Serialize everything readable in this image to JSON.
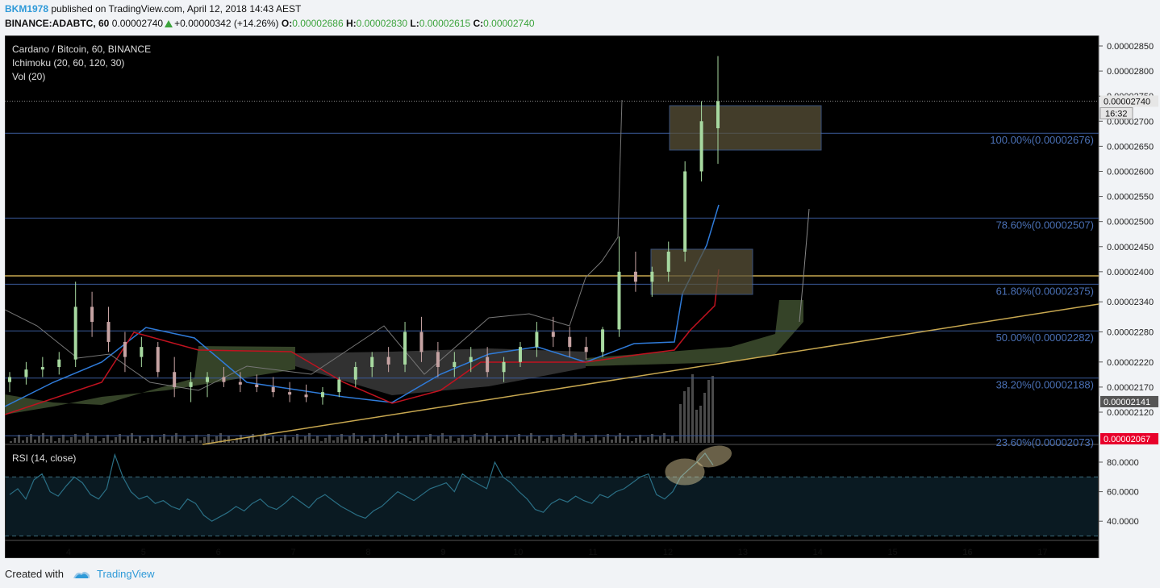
{
  "header": {
    "user": "BKM1978",
    "published": "published on TradingView.com, April 12, 2018 14:43 AEST",
    "symbol": "BINANCE:ADABTC, 60",
    "last": "0.00002740",
    "change": "+0.00000342 (+14.26%)",
    "o_label": "O:",
    "o": "0.00002686",
    "h_label": "H:",
    "h": "0.00002830",
    "l_label": "L:",
    "l": "0.00002615",
    "c_label": "C:",
    "c": "0.00002740"
  },
  "footer": {
    "created": "Created with",
    "brand": "TradingView"
  },
  "colors": {
    "background": "#000000",
    "fib": "#3a5a9a",
    "fibText": "#4a70b5",
    "trend": "#c8a850",
    "tenkan": "#2f7bd9",
    "kijun": "#c0121f",
    "cloudBull": "#3b4a2c",
    "cloudBear": "#3a3a3a",
    "candleUp": "#a7d9a0",
    "candleDown": "#c6a3a3",
    "box": "#5a5238",
    "rsiLine": "#2a6f85",
    "highlight": "#e8d6a0"
  },
  "chart_data": {
    "type": "candlestick",
    "title": "Cardano / Bitcoin, 60, BINANCE",
    "indicators": [
      "Ichimoku (20, 60, 120, 30)",
      "Vol (20)"
    ],
    "x_ticks": [
      "4",
      "5",
      "6",
      "7",
      "8",
      "9",
      "10",
      "11",
      "12",
      "13",
      "14",
      "15",
      "16",
      "17"
    ],
    "x_ticks_bold": [
      "9",
      "16"
    ],
    "xlim": [
      3.15,
      17.75
    ],
    "price_axis": {
      "ticks": [
        "0.00002850",
        "0.00002800",
        "0.00002750",
        "0.00002700",
        "0.00002650",
        "0.00002600",
        "0.00002550",
        "0.00002500",
        "0.00002450",
        "0.00002400",
        "0.00002340",
        "0.00002280",
        "0.00002220",
        "0.00002170",
        "0.00002120"
      ]
    },
    "price_tags": [
      {
        "value": "0.00002740",
        "sub": "16:32",
        "style": "last"
      },
      {
        "value": "0.00002141",
        "style": "grey"
      },
      {
        "value": "0.00002067",
        "style": "red"
      }
    ],
    "fibonacci": [
      {
        "label": "100.00%(0.00002676)"
      },
      {
        "label": "78.60%(0.00002507)"
      },
      {
        "label": "61.80%(0.00002375)"
      },
      {
        "label": "50.00%(0.00002282)"
      },
      {
        "label": "38.20%(0.00002188)"
      },
      {
        "label": "23.60%(0.00002073)"
      }
    ],
    "candles_ohlc": [
      [
        2180,
        2200,
        2160,
        2190
      ],
      [
        2190,
        2220,
        2175,
        2205
      ],
      [
        2205,
        2230,
        2190,
        2210
      ],
      [
        2210,
        2240,
        2195,
        2225
      ],
      [
        2225,
        2380,
        2210,
        2330
      ],
      [
        2330,
        2360,
        2270,
        2300
      ],
      [
        2300,
        2330,
        2240,
        2260
      ],
      [
        2260,
        2280,
        2200,
        2230
      ],
      [
        2230,
        2270,
        2210,
        2250
      ],
      [
        2250,
        2260,
        2190,
        2200
      ],
      [
        2200,
        2230,
        2150,
        2170
      ],
      [
        2170,
        2200,
        2140,
        2180
      ],
      [
        2180,
        2200,
        2150,
        2190
      ],
      [
        2190,
        2210,
        2170,
        2180
      ],
      [
        2180,
        2200,
        2160,
        2175
      ],
      [
        2175,
        2195,
        2160,
        2170
      ],
      [
        2170,
        2190,
        2150,
        2160
      ],
      [
        2160,
        2180,
        2140,
        2155
      ],
      [
        2155,
        2175,
        2140,
        2150
      ],
      [
        2150,
        2170,
        2135,
        2160
      ],
      [
        2160,
        2190,
        2150,
        2185
      ],
      [
        2185,
        2220,
        2170,
        2210
      ],
      [
        2210,
        2240,
        2190,
        2230
      ],
      [
        2230,
        2250,
        2200,
        2215
      ],
      [
        2215,
        2300,
        2200,
        2280
      ],
      [
        2280,
        2310,
        2220,
        2240
      ],
      [
        2240,
        2260,
        2190,
        2210
      ],
      [
        2210,
        2240,
        2190,
        2220
      ],
      [
        2220,
        2250,
        2200,
        2230
      ],
      [
        2230,
        2250,
        2190,
        2200
      ],
      [
        2200,
        2230,
        2180,
        2220
      ],
      [
        2220,
        2260,
        2210,
        2250
      ],
      [
        2250,
        2300,
        2230,
        2280
      ],
      [
        2280,
        2310,
        2250,
        2270
      ],
      [
        2270,
        2290,
        2230,
        2250
      ],
      [
        2250,
        2270,
        2225,
        2240
      ],
      [
        2240,
        2290,
        2230,
        2285
      ],
      [
        2285,
        2470,
        2270,
        2400
      ],
      [
        2400,
        2440,
        2360,
        2380
      ],
      [
        2380,
        2410,
        2350,
        2400
      ],
      [
        2400,
        2460,
        2380,
        2440
      ],
      [
        2440,
        2620,
        2420,
        2600
      ],
      [
        2600,
        2740,
        2580,
        2700
      ],
      [
        2686,
        2830,
        2615,
        2740
      ]
    ],
    "rsi": {
      "label": "RSI (14, close)",
      "ticks": [
        "80.0000",
        "60.0000",
        "40.0000"
      ],
      "ylim": [
        27,
        92
      ],
      "upper_band": 70,
      "lower_band": 30,
      "values": [
        58,
        62,
        55,
        68,
        72,
        60,
        57,
        64,
        70,
        66,
        58,
        55,
        62,
        85,
        70,
        60,
        55,
        57,
        52,
        54,
        50,
        48,
        55,
        52,
        44,
        40,
        43,
        46,
        50,
        47,
        52,
        55,
        50,
        48,
        52,
        57,
        53,
        49,
        55,
        58,
        54,
        50,
        47,
        44,
        42,
        47,
        50,
        55,
        60,
        57,
        54,
        58,
        62,
        64,
        66,
        60,
        72,
        68,
        65,
        62,
        80,
        70,
        66,
        60,
        55,
        48,
        46,
        52,
        55,
        53,
        57,
        54,
        52,
        58,
        56,
        60,
        62,
        66,
        70,
        72,
        58,
        55,
        60,
        70,
        75,
        80,
        86,
        78
      ]
    }
  }
}
